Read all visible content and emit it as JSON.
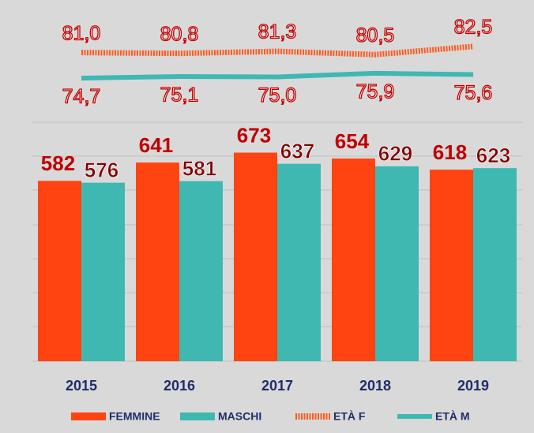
{
  "chart_data": {
    "type": "bar",
    "categories": [
      "2015",
      "2016",
      "2017",
      "2018",
      "2019"
    ],
    "ylim": [
      0,
      1140
    ],
    "y2lim": [
      5,
      92
    ],
    "series": [
      {
        "name": "FEMMINE",
        "type": "bar",
        "color": "#ff4412",
        "values": [
          582,
          641,
          673,
          654,
          618
        ]
      },
      {
        "name": "MASCHI",
        "type": "bar",
        "color": "#3fb8b2",
        "values": [
          576,
          581,
          637,
          629,
          623
        ]
      },
      {
        "name": "ETÀ F",
        "type": "line",
        "axis": "y2",
        "color": "#ff5a1f",
        "dashed": true,
        "values": [
          81.0,
          80.8,
          81.3,
          80.5,
          82.5
        ],
        "value_labels": [
          "81,0",
          "80,8",
          "81,3",
          "80,5",
          "82,5"
        ]
      },
      {
        "name": "ETÀ M",
        "type": "line",
        "axis": "y2",
        "color": "#3fb8b2",
        "values": [
          74.7,
          75.1,
          75.0,
          75.9,
          75.6
        ],
        "value_labels": [
          "74,7",
          "75,1",
          "75,0",
          "75,9",
          "75,6"
        ]
      }
    ]
  }
}
